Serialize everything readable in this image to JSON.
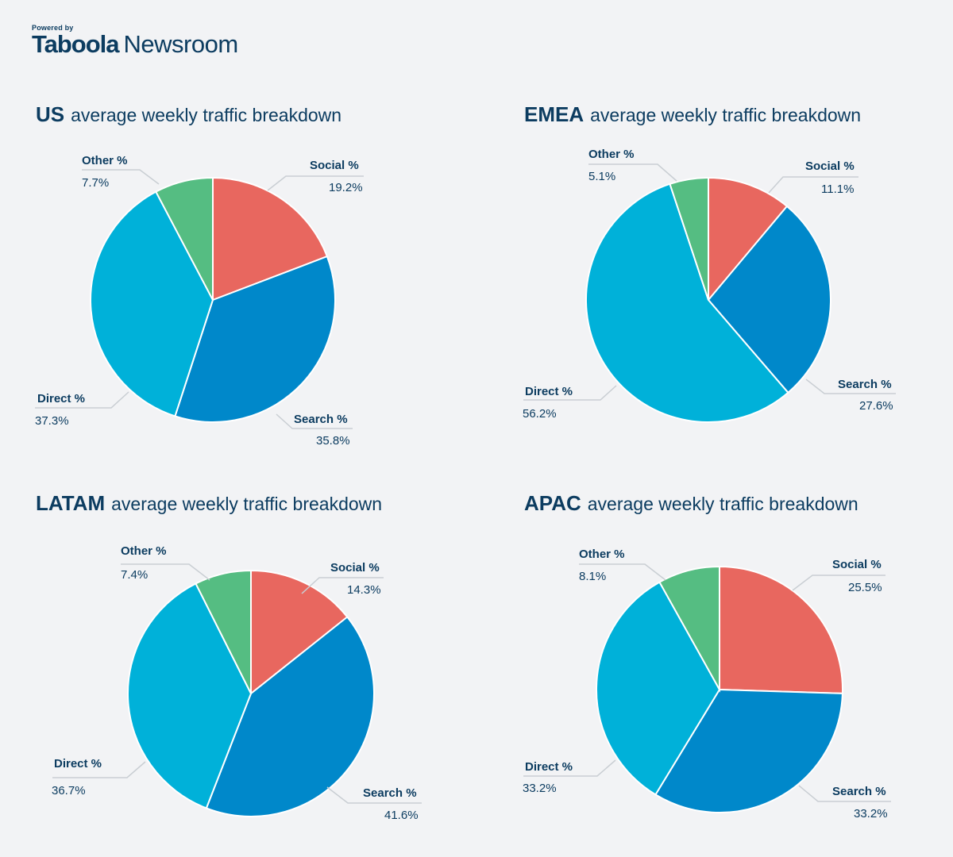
{
  "brand": {
    "powered_by": "Powered by",
    "logo_main": "Taboola",
    "logo_sub": "Newsroom"
  },
  "colors": {
    "social": "#e8675f",
    "search": "#0088ca",
    "direct": "#00b1d9",
    "other": "#55bd82",
    "title": "#0c3c60",
    "background": "#f2f3f5"
  },
  "chart_data": [
    {
      "type": "pie",
      "region": "US",
      "title_rest": "average weekly traffic breakdown",
      "slices": [
        {
          "key": "social",
          "label": "Social %",
          "value": 19.2,
          "value_text": "19.2%"
        },
        {
          "key": "search",
          "label": "Search %",
          "value": 35.8,
          "value_text": "35.8%"
        },
        {
          "key": "direct",
          "label": "Direct %",
          "value": 37.3,
          "value_text": "37.3%"
        },
        {
          "key": "other",
          "label": "Other %",
          "value": 7.7,
          "value_text": "7.7%"
        }
      ]
    },
    {
      "type": "pie",
      "region": "EMEA",
      "title_rest": "average weekly traffic breakdown",
      "slices": [
        {
          "key": "social",
          "label": "Social %",
          "value": 11.1,
          "value_text": "11.1%"
        },
        {
          "key": "search",
          "label": "Search %",
          "value": 27.6,
          "value_text": "27.6%"
        },
        {
          "key": "direct",
          "label": "Direct %",
          "value": 56.2,
          "value_text": "56.2%"
        },
        {
          "key": "other",
          "label": "Other %",
          "value": 5.1,
          "value_text": "5.1%"
        }
      ]
    },
    {
      "type": "pie",
      "region": "LATAM",
      "title_rest": "average weekly traffic breakdown",
      "slices": [
        {
          "key": "social",
          "label": "Social %",
          "value": 14.3,
          "value_text": "14.3%"
        },
        {
          "key": "search",
          "label": "Search %",
          "value": 41.6,
          "value_text": "41.6%"
        },
        {
          "key": "direct",
          "label": "Direct %",
          "value": 36.7,
          "value_text": "36.7%"
        },
        {
          "key": "other",
          "label": "Other %",
          "value": 7.4,
          "value_text": "7.4%"
        }
      ]
    },
    {
      "type": "pie",
      "region": "APAC",
      "title_rest": "average weekly traffic breakdown",
      "slices": [
        {
          "key": "social",
          "label": "Social %",
          "value": 25.5,
          "value_text": "25.5%"
        },
        {
          "key": "search",
          "label": "Search %",
          "value": 33.2,
          "value_text": "33.2%"
        },
        {
          "key": "direct",
          "label": "Direct %",
          "value": 33.2,
          "value_text": "33.2%"
        },
        {
          "key": "other",
          "label": "Other %",
          "value": 8.1,
          "value_text": "8.1%"
        }
      ]
    }
  ]
}
